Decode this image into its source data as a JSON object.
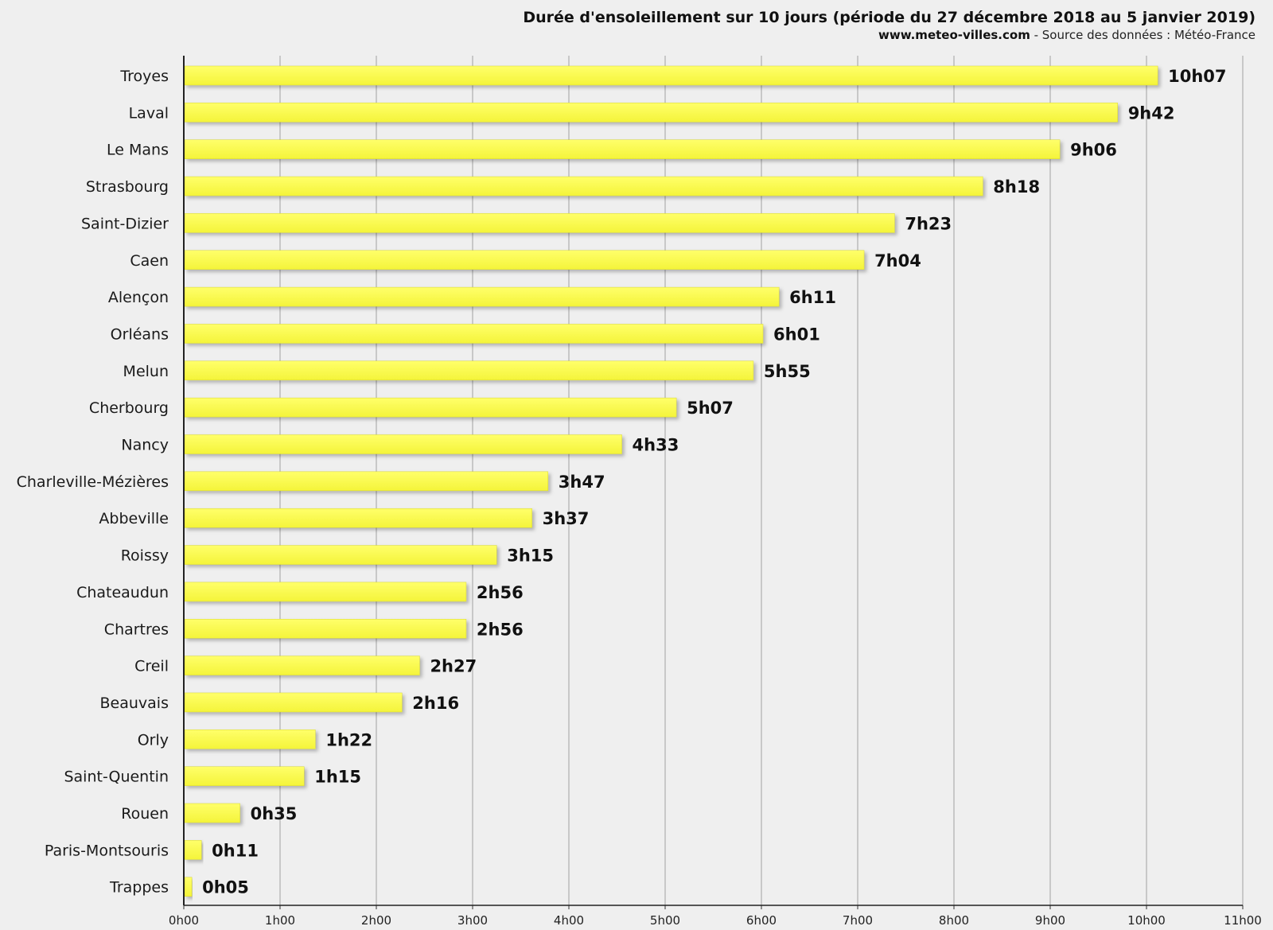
{
  "chart_data": {
    "type": "bar",
    "orientation": "horizontal",
    "title": "Durée d'ensoleillement sur 10 jours (période du 27 décembre 2018 au 5 janvier 2019)",
    "subtitle_site": "www.meteo-villes.com",
    "subtitle_source": " - Source des données : Météo-France",
    "categories": [
      "Troyes",
      "Laval",
      "Le Mans",
      "Strasbourg",
      "Saint-Dizier",
      "Caen",
      "Alençon",
      "Orléans",
      "Melun",
      "Cherbourg",
      "Nancy",
      "Charleville-Mézières",
      "Abbeville",
      "Roissy",
      "Chateaudun",
      "Chartres",
      "Creil",
      "Beauvais",
      "Orly",
      "Saint-Quentin",
      "Rouen",
      "Paris-Montsouris",
      "Trappes"
    ],
    "values_minutes": [
      607,
      582,
      546,
      498,
      443,
      424,
      371,
      361,
      355,
      307,
      273,
      227,
      217,
      195,
      176,
      176,
      147,
      136,
      82,
      75,
      35,
      11,
      5
    ],
    "value_labels": [
      "10h07",
      "9h42",
      "9h06",
      "8h18",
      "7h23",
      "7h04",
      "6h11",
      "6h01",
      "5h55",
      "5h07",
      "4h33",
      "3h47",
      "3h37",
      "3h15",
      "2h56",
      "2h56",
      "2h27",
      "2h16",
      "1h22",
      "1h15",
      "0h35",
      "0h11",
      "0h05"
    ],
    "x_ticks": [
      "0h00",
      "1h00",
      "2h00",
      "3h00",
      "4h00",
      "5h00",
      "6h00",
      "7h00",
      "8h00",
      "9h00",
      "10h00",
      "11h00"
    ],
    "xlim_minutes": [
      0,
      660
    ],
    "grid": true,
    "bar_color": "#ffff55",
    "gridline_color": "#bbbbbb",
    "background_color": "#efefef"
  }
}
